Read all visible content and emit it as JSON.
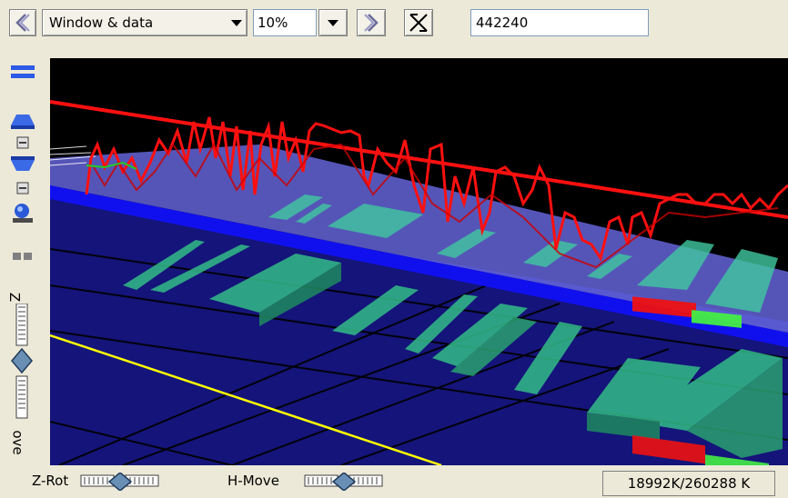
{
  "toolbar": {
    "back_icon": "chevron-left-icon",
    "view_mode": "Window & data",
    "zoom": "10%",
    "forward_icon": "chevron-right-icon",
    "reset_icon": "cross-icon",
    "position": "442240"
  },
  "sidebar": {
    "z_label": "Z",
    "move_label": "ove"
  },
  "bottom": {
    "zrot_label": "Z-Rot",
    "hmove_label": "H-Move",
    "memory": "18992K/260288 K"
  },
  "colors": {
    "trace": "#ff1010",
    "plane": "#5a5adc",
    "edge": "#0000ff",
    "floor": "#14147a",
    "block": "#33bb88",
    "guide": "#ffff00"
  }
}
